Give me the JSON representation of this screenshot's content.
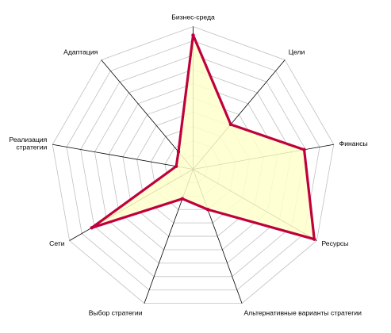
{
  "chart_data": {
    "type": "radar",
    "axes": [
      "Бизнес-среда",
      "Цели",
      "Финансы",
      "Ресурсы",
      "Альтернативные варианты стратегии",
      "Выбор стратегии",
      "Сети",
      "Реализация стратегии",
      "Адаптация"
    ],
    "axis_label_lines": [
      [
        "Бизнес-среда"
      ],
      [
        "Цели"
      ],
      [
        "Финансы"
      ],
      [
        "Ресурсы"
      ],
      [
        "Альтернативные варианты стратегии"
      ],
      [
        "Выбор стратегии"
      ],
      [
        "Сети"
      ],
      [
        "Реализация",
        "стратегии"
      ],
      [
        "Адаптация"
      ]
    ],
    "series": [
      {
        "values": [
          9.4,
          4.1,
          7.9,
          9.8,
          3.0,
          2.2,
          8.2,
          1.2,
          1.6
        ]
      }
    ],
    "range": [
      0,
      10
    ],
    "rings": 10,
    "grid": true,
    "colors": {
      "fill": "#ffffcc",
      "line": "#c0003c",
      "grid": "#c0c0c0",
      "axis": "#000000"
    }
  }
}
